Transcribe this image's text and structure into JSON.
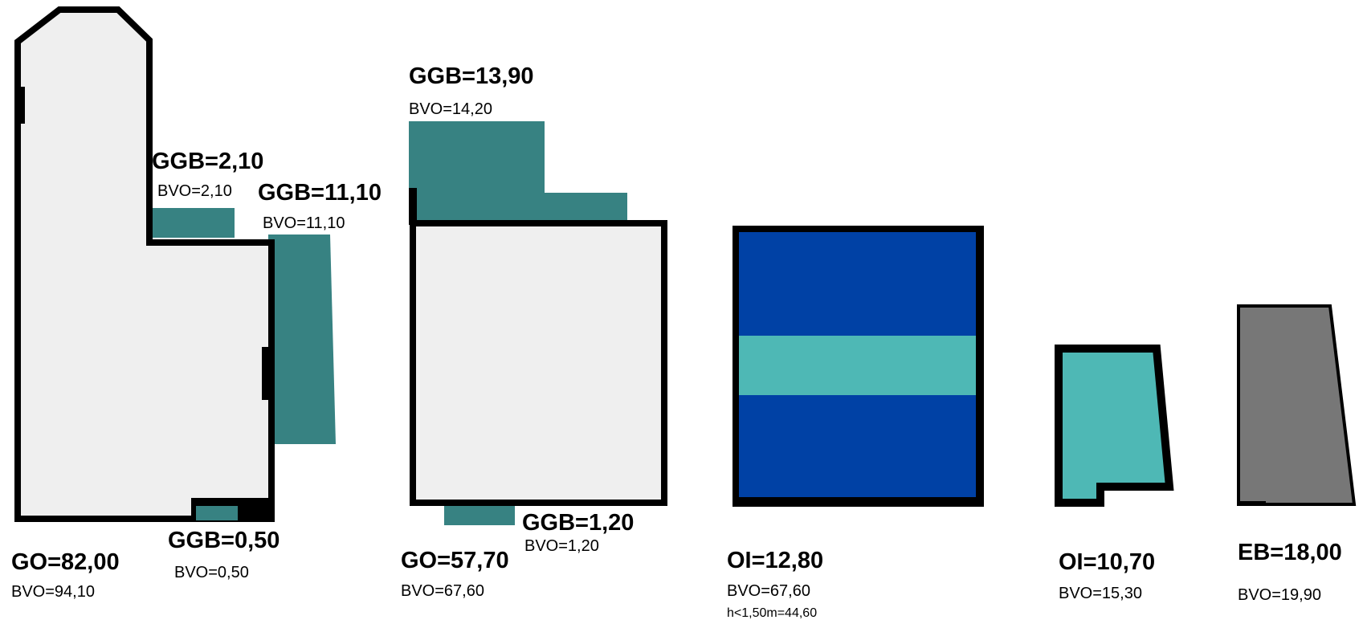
{
  "colors": {
    "room_fill": "#efefef",
    "outline": "#000000",
    "teal": "#378282",
    "dark_blue": "#0041a5",
    "light_teal": "#4eb8b5",
    "gray": "#777777"
  },
  "shapes": [
    {
      "name": "shape-building-1",
      "type": "room"
    },
    {
      "name": "shape-ggb-2-10",
      "type": "teal-area"
    },
    {
      "name": "shape-ggb-11-10",
      "type": "teal-area"
    },
    {
      "name": "shape-ggb-0-50",
      "type": "teal-area"
    },
    {
      "name": "shape-ggb-13-90",
      "type": "teal-area"
    },
    {
      "name": "shape-building-2",
      "type": "room"
    },
    {
      "name": "shape-ggb-1-20",
      "type": "teal-area"
    },
    {
      "name": "shape-oi-12-80",
      "type": "blue-area"
    },
    {
      "name": "shape-oi-10-70",
      "type": "light-teal-area"
    },
    {
      "name": "shape-eb-18-00",
      "type": "gray-area"
    }
  ],
  "labels": {
    "go_82": "GO=82,00",
    "bvo_94": "BVO=94,10",
    "ggb_2_10": "GGB=2,10",
    "bvo_2_10": "BVO=2,10",
    "ggb_11_10": "GGB=11,10",
    "bvo_11_10": "BVO=11,10",
    "ggb_0_50": "GGB=0,50",
    "bvo_0_50": "BVO=0,50",
    "ggb_13_90": "GGB=13,90",
    "bvo_14_20": "BVO=14,20",
    "go_57_70": "GO=57,70",
    "bvo_67_60_a": "BVO=67,60",
    "ggb_1_20": "GGB=1,20",
    "bvo_1_20": "BVO=1,20",
    "oi_12_80": "OI=12,80",
    "bvo_67_60_b": "BVO=67,60",
    "h_note": "h<1,50m=44,60",
    "oi_10_70": "OI=10,70",
    "bvo_15_30": "BVO=15,30",
    "eb_18": "EB=18,00",
    "bvo_19_90": "BVO=19,90"
  }
}
